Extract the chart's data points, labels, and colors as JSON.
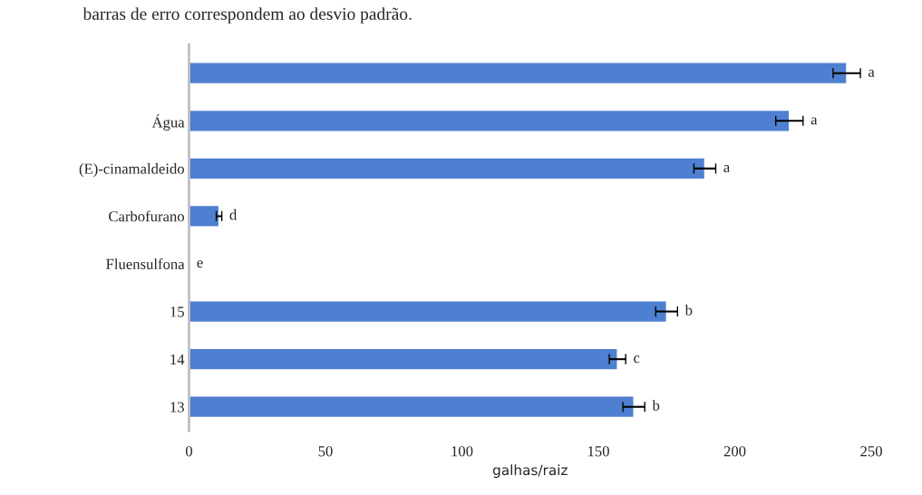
{
  "chart_data": {
    "type": "bar",
    "orientation": "horizontal",
    "xlabel": "galhas/raiz",
    "categories": [
      null,
      "Água",
      "(E)-cinamaldeido",
      "Carbofurano",
      "Fluensulfona",
      "15",
      "14",
      "13"
    ],
    "values": [
      241,
      220,
      189,
      11,
      0,
      175,
      157,
      163
    ],
    "errors": [
      5,
      5,
      4,
      1,
      null,
      4,
      3,
      4
    ],
    "color": "#4f7fd0",
    "xlim": [
      0,
      250
    ],
    "xticks": [
      0,
      50,
      100,
      150,
      200,
      250
    ],
    "grid": false,
    "legend": false,
    "annotations": [
      "barras de erro correspondem ao desvio padrão.",
      {
        "text": "a",
        "x": 246
      },
      {
        "text": "a",
        "x": 225,
        "y": "Água"
      },
      {
        "text": "a",
        "x": 193,
        "y": "(E)-cinamaldeido"
      },
      {
        "text": "d",
        "x": 12,
        "y": "Carbofurano"
      },
      {
        "text": "e",
        "x": 0,
        "y": "Fluensulfona"
      },
      {
        "text": "b",
        "x": 179,
        "y": "15"
      },
      {
        "text": "c",
        "x": 160,
        "y": "14"
      },
      {
        "text": "b",
        "x": 167,
        "y": "13"
      }
    ]
  }
}
